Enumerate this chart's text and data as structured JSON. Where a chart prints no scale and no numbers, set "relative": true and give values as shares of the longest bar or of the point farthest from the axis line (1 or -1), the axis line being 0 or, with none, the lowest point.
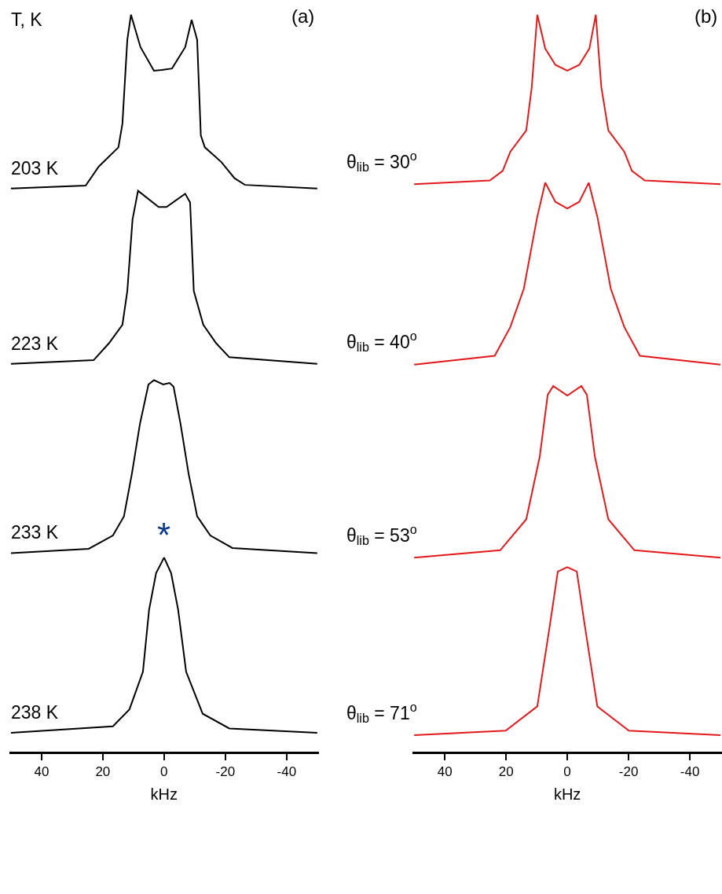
{
  "chart_data": [
    {
      "type": "line",
      "title": "(a)",
      "xlabel": "kHz",
      "relative": true,
      "xlim": [
        50.5,
        -50.5
      ],
      "xticks": [
        40,
        20,
        0,
        -20,
        -40
      ],
      "annotations": [
        "T, K",
        {
          "text": "*",
          "x": 0,
          "y": 0.263
        }
      ],
      "series": [
        {
          "name": "203 K",
          "color": "#000000",
          "x": [
            50,
            25.6,
            21.3,
            14.9,
            13.6,
            12,
            10.8,
            7.7,
            3.3,
            0.8,
            -2.6,
            -6.9,
            -9,
            -10.8,
            -12,
            -13.3,
            -18.7,
            -23,
            -26.4,
            -50
          ],
          "values": [
            0.764,
            0.768,
            0.794,
            0.82,
            0.852,
            0.966,
            1.0,
            0.956,
            0.924,
            0.925,
            0.927,
            0.956,
            0.993,
            0.966,
            0.836,
            0.82,
            0.8,
            0.778,
            0.769,
            0.764
          ]
        },
        {
          "name": "223 K",
          "color": "#000000",
          "x": [
            50,
            23,
            18,
            13.6,
            12,
            10.3,
            8.5,
            1.8,
            -0.8,
            -6.9,
            -8.5,
            -9.7,
            -12.8,
            -17,
            -21.3,
            -50
          ],
          "values": [
            0.526,
            0.531,
            0.554,
            0.579,
            0.625,
            0.722,
            0.761,
            0.739,
            0.739,
            0.757,
            0.745,
            0.625,
            0.579,
            0.554,
            0.535,
            0.526
          ]
        },
        {
          "name": "233 K",
          "color": "#000000",
          "x": [
            50,
            24.6,
            16.7,
            13.1,
            10.5,
            7.9,
            5.1,
            3.3,
            0.3,
            -1.8,
            -3.1,
            -5.4,
            -8,
            -10.8,
            -15.1,
            -22.3,
            -50
          ],
          "values": [
            0.269,
            0.275,
            0.293,
            0.319,
            0.377,
            0.444,
            0.498,
            0.504,
            0.498,
            0.5,
            0.495,
            0.444,
            0.377,
            0.319,
            0.293,
            0.276,
            0.269
          ]
        },
        {
          "name": "238 K",
          "color": "#000000",
          "x": [
            50,
            16.7,
            11.3,
            6.9,
            4.9,
            2.6,
            0,
            -2.3,
            -4.6,
            -7.2,
            -12.6,
            -21.3,
            -50
          ],
          "values": [
            0.025,
            0.034,
            0.057,
            0.108,
            0.192,
            0.242,
            0.263,
            0.242,
            0.192,
            0.108,
            0.051,
            0.031,
            0.025
          ]
        }
      ]
    },
    {
      "type": "line",
      "title": "(b)",
      "xlabel": "kHz",
      "relative": true,
      "xlim": [
        50.5,
        -50.5
      ],
      "xticks": [
        40,
        20,
        0,
        -20,
        -40
      ],
      "series": [
        {
          "name": "θ$_{lib}$ = 30$^{o}$",
          "color": "#e31a1c",
          "x": [
            50,
            25.3,
            21.1,
            18.6,
            13.4,
            11.6,
            9.8,
            7.2,
            3.9,
            0,
            -3.9,
            -7.2,
            -9.3,
            -11.1,
            -13.4,
            -18.6,
            -21.1,
            -25.3,
            -50
          ],
          "values": [
            0.77,
            0.775,
            0.788,
            0.814,
            0.843,
            0.902,
            1.0,
            0.954,
            0.932,
            0.924,
            0.932,
            0.954,
            1.0,
            0.902,
            0.843,
            0.814,
            0.788,
            0.775,
            0.77
          ]
        },
        {
          "name": "θ$_{lib}$ = 40$^{o}$",
          "color": "#e31a1c",
          "x": [
            50,
            23.7,
            18.6,
            14.2,
            9.8,
            7.2,
            3.9,
            0,
            -3.9,
            -7,
            -9.8,
            -14.2,
            -18.6,
            -23.7,
            -50
          ],
          "values": [
            0.525,
            0.537,
            0.576,
            0.628,
            0.726,
            0.772,
            0.746,
            0.737,
            0.746,
            0.772,
            0.726,
            0.628,
            0.576,
            0.537,
            0.525
          ]
        },
        {
          "name": "θ$_{lib}$ = 53$^{o}$",
          "color": "#e31a1c",
          "x": [
            50,
            21.9,
            13.4,
            9,
            6.4,
            4.6,
            0,
            -4.6,
            -6.4,
            -9,
            -13.4,
            -21.9,
            -50
          ],
          "values": [
            0.263,
            0.273,
            0.315,
            0.4,
            0.484,
            0.496,
            0.483,
            0.496,
            0.484,
            0.4,
            0.315,
            0.273,
            0.263
          ]
        },
        {
          "name": "θ$_{lib}$ = 71$^{o}$",
          "color": "#e31a1c",
          "x": [
            50,
            20.1,
            9.8,
            5.7,
            3.1,
            0,
            -3.1,
            -5.7,
            -9.8,
            -20.1,
            -50
          ],
          "values": [
            0.022,
            0.028,
            0.061,
            0.171,
            0.244,
            0.25,
            0.244,
            0.171,
            0.061,
            0.028,
            0.022
          ]
        }
      ]
    }
  ]
}
